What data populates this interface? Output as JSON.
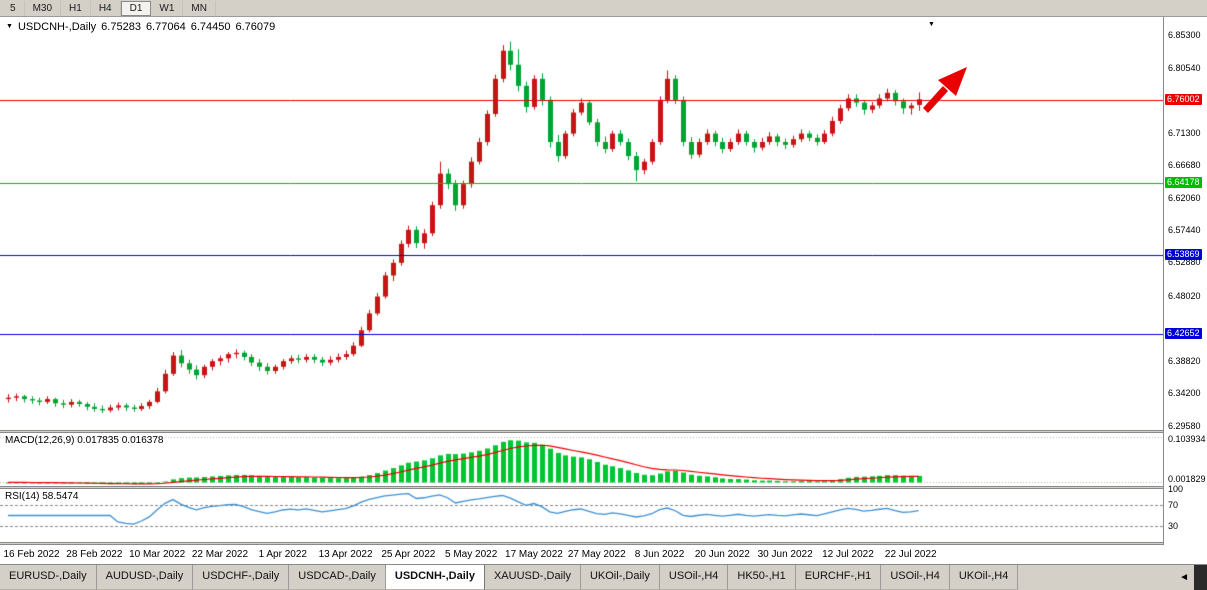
{
  "toolbar": {
    "timeframes": [
      {
        "label": "5",
        "active": false
      },
      {
        "label": "M30",
        "active": false
      },
      {
        "label": "H1",
        "active": false
      },
      {
        "label": "H4",
        "active": false
      },
      {
        "label": "D1",
        "active": true
      },
      {
        "label": "W1",
        "active": false
      },
      {
        "label": "MN",
        "active": false
      }
    ]
  },
  "chart_data": {
    "type": "candlestick",
    "symbol": "USDCNH-,Daily",
    "ohlc_readout": {
      "open": "6.75283",
      "high": "6.77064",
      "low": "6.74450",
      "close": "6.76079"
    },
    "y_axis": {
      "top": 6.878,
      "bottom": 6.29,
      "ticks": [
        "6.85300",
        "6.80540",
        "6.71300",
        "6.66680",
        "6.62060",
        "6.57440",
        "6.52880",
        "6.48020",
        "6.38820",
        "6.34200",
        "6.29580"
      ]
    },
    "hlines": [
      {
        "value": 6.76002,
        "label": "6.76002",
        "color": "#ee0000"
      },
      {
        "value": 6.64178,
        "label": "6.64178",
        "color": "#00bb00"
      },
      {
        "value": 6.53869,
        "label": "6.53869",
        "color": "#0000dd"
      },
      {
        "value": 6.42652,
        "label": "6.42652",
        "color": "#0000dd"
      }
    ],
    "colors": {
      "up": "#c81414",
      "down": "#00a432"
    },
    "annotations": [
      {
        "type": "arrow-up-right",
        "color": "#e80000"
      }
    ],
    "shift_marker": "▼",
    "dropdown_marker": "▼",
    "x_ticks": [
      {
        "index": 3,
        "label": "16 Feb 2022"
      },
      {
        "index": 11,
        "label": "28 Feb 2022"
      },
      {
        "index": 19,
        "label": "10 Mar 2022"
      },
      {
        "index": 27,
        "label": "22 Mar 2022"
      },
      {
        "index": 35,
        "label": "1 Apr 2022"
      },
      {
        "index": 43,
        "label": "13 Apr 2022"
      },
      {
        "index": 51,
        "label": "25 Apr 2022"
      },
      {
        "index": 59,
        "label": "5 May 2022"
      },
      {
        "index": 67,
        "label": "17 May 2022"
      },
      {
        "index": 75,
        "label": "27 May 2022"
      },
      {
        "index": 83,
        "label": "8 Jun 2022"
      },
      {
        "index": 91,
        "label": "20 Jun 2022"
      },
      {
        "index": 99,
        "label": "30 Jun 2022"
      },
      {
        "index": 107,
        "label": "12 Jul 2022"
      },
      {
        "index": 115,
        "label": "22 Jul 2022"
      }
    ],
    "candles": [
      [
        6.334,
        6.341,
        6.329,
        6.336
      ],
      [
        6.336,
        6.342,
        6.331,
        6.338
      ],
      [
        6.338,
        6.34,
        6.329,
        6.334
      ],
      [
        6.334,
        6.338,
        6.327,
        6.332
      ],
      [
        6.332,
        6.336,
        6.325,
        6.33
      ],
      [
        6.33,
        6.338,
        6.327,
        6.334
      ],
      [
        6.334,
        6.336,
        6.323,
        6.328
      ],
      [
        6.328,
        6.333,
        6.321,
        6.326
      ],
      [
        6.326,
        6.334,
        6.322,
        6.33
      ],
      [
        6.33,
        6.333,
        6.323,
        6.327
      ],
      [
        6.327,
        6.33,
        6.318,
        6.323
      ],
      [
        6.323,
        6.328,
        6.316,
        6.32
      ],
      [
        6.32,
        6.325,
        6.314,
        6.318
      ],
      [
        6.318,
        6.326,
        6.315,
        6.322
      ],
      [
        6.322,
        6.329,
        6.318,
        6.325
      ],
      [
        6.325,
        6.328,
        6.317,
        6.322
      ],
      [
        6.322,
        6.326,
        6.316,
        6.32
      ],
      [
        6.32,
        6.328,
        6.317,
        6.324
      ],
      [
        6.324,
        6.333,
        6.32,
        6.33
      ],
      [
        6.33,
        6.35,
        6.328,
        6.345
      ],
      [
        6.345,
        6.376,
        6.342,
        6.37
      ],
      [
        6.37,
        6.401,
        6.367,
        6.396
      ],
      [
        6.396,
        6.404,
        6.379,
        6.385
      ],
      [
        6.385,
        6.39,
        6.37,
        6.376
      ],
      [
        6.376,
        6.382,
        6.362,
        6.368
      ],
      [
        6.368,
        6.383,
        6.364,
        6.38
      ],
      [
        6.38,
        6.391,
        6.375,
        6.388
      ],
      [
        6.388,
        6.396,
        6.382,
        6.392
      ],
      [
        6.392,
        6.401,
        6.386,
        6.398
      ],
      [
        6.398,
        6.405,
        6.392,
        6.4
      ],
      [
        6.4,
        6.403,
        6.389,
        6.394
      ],
      [
        6.394,
        6.398,
        6.381,
        6.386
      ],
      [
        6.386,
        6.391,
        6.374,
        6.38
      ],
      [
        6.38,
        6.385,
        6.369,
        6.374
      ],
      [
        6.374,
        6.383,
        6.37,
        6.38
      ],
      [
        6.38,
        6.391,
        6.376,
        6.388
      ],
      [
        6.388,
        6.396,
        6.384,
        6.392
      ],
      [
        6.392,
        6.397,
        6.385,
        6.39
      ],
      [
        6.39,
        6.398,
        6.386,
        6.394
      ],
      [
        6.394,
        6.398,
        6.385,
        6.39
      ],
      [
        6.39,
        6.394,
        6.381,
        6.386
      ],
      [
        6.386,
        6.395,
        6.382,
        6.39
      ],
      [
        6.39,
        6.399,
        6.386,
        6.394
      ],
      [
        6.394,
        6.403,
        6.39,
        6.398
      ],
      [
        6.398,
        6.415,
        6.395,
        6.41
      ],
      [
        6.41,
        6.437,
        6.408,
        6.432
      ],
      [
        6.432,
        6.461,
        6.429,
        6.456
      ],
      [
        6.456,
        6.485,
        6.453,
        6.48
      ],
      [
        6.48,
        6.515,
        6.477,
        6.51
      ],
      [
        6.51,
        6.533,
        6.502,
        6.528
      ],
      [
        6.528,
        6.56,
        6.524,
        6.555
      ],
      [
        6.555,
        6.581,
        6.55,
        6.575
      ],
      [
        6.575,
        6.58,
        6.549,
        6.556
      ],
      [
        6.556,
        6.576,
        6.548,
        6.57
      ],
      [
        6.57,
        6.615,
        6.566,
        6.61
      ],
      [
        6.61,
        6.672,
        6.605,
        6.655
      ],
      [
        6.655,
        6.662,
        6.633,
        6.64
      ],
      [
        6.64,
        6.646,
        6.602,
        6.61
      ],
      [
        6.61,
        6.645,
        6.605,
        6.64
      ],
      [
        6.64,
        6.678,
        6.635,
        6.672
      ],
      [
        6.672,
        6.706,
        6.668,
        6.7
      ],
      [
        6.7,
        6.745,
        6.695,
        6.74
      ],
      [
        6.74,
        6.796,
        6.736,
        6.79
      ],
      [
        6.79,
        6.838,
        6.785,
        6.83
      ],
      [
        6.83,
        6.843,
        6.802,
        6.81
      ],
      [
        6.81,
        6.832,
        6.772,
        6.78
      ],
      [
        6.78,
        6.786,
        6.742,
        6.75
      ],
      [
        6.75,
        6.795,
        6.746,
        6.79
      ],
      [
        6.79,
        6.798,
        6.752,
        6.76
      ],
      [
        6.76,
        6.765,
        6.692,
        6.7
      ],
      [
        6.7,
        6.71,
        6.672,
        6.68
      ],
      [
        6.68,
        6.716,
        6.676,
        6.712
      ],
      [
        6.712,
        6.747,
        6.708,
        6.742
      ],
      [
        6.742,
        6.762,
        6.738,
        6.756
      ],
      [
        6.756,
        6.76,
        6.724,
        6.728
      ],
      [
        6.728,
        6.733,
        6.694,
        6.7
      ],
      [
        6.7,
        6.708,
        6.684,
        6.69
      ],
      [
        6.69,
        6.716,
        6.686,
        6.712
      ],
      [
        6.712,
        6.717,
        6.695,
        6.7
      ],
      [
        6.7,
        6.705,
        6.674,
        6.68
      ],
      [
        6.68,
        6.686,
        6.644,
        6.66
      ],
      [
        6.66,
        6.676,
        6.654,
        6.672
      ],
      [
        6.672,
        6.704,
        6.668,
        6.7
      ],
      [
        6.7,
        6.765,
        6.696,
        6.76
      ],
      [
        6.76,
        6.802,
        6.755,
        6.79
      ],
      [
        6.79,
        6.795,
        6.754,
        6.76
      ],
      [
        6.76,
        6.765,
        6.694,
        6.7
      ],
      [
        6.7,
        6.707,
        6.676,
        6.682
      ],
      [
        6.682,
        6.705,
        6.678,
        6.7
      ],
      [
        6.7,
        6.718,
        6.696,
        6.712
      ],
      [
        6.712,
        6.716,
        6.694,
        6.7
      ],
      [
        6.7,
        6.706,
        6.684,
        6.69
      ],
      [
        6.69,
        6.705,
        6.686,
        6.7
      ],
      [
        6.7,
        6.718,
        6.696,
        6.712
      ],
      [
        6.712,
        6.716,
        6.695,
        6.7
      ],
      [
        6.7,
        6.704,
        6.685,
        6.692
      ],
      [
        6.692,
        6.706,
        6.688,
        6.7
      ],
      [
        6.7,
        6.714,
        6.696,
        6.708
      ],
      [
        6.708,
        6.712,
        6.694,
        6.7
      ],
      [
        6.7,
        6.705,
        6.69,
        6.696
      ],
      [
        6.696,
        6.709,
        6.692,
        6.704
      ],
      [
        6.704,
        6.718,
        6.7,
        6.712
      ],
      [
        6.712,
        6.716,
        6.701,
        6.706
      ],
      [
        6.706,
        6.711,
        6.695,
        6.7
      ],
      [
        6.7,
        6.717,
        6.697,
        6.712
      ],
      [
        6.712,
        6.736,
        6.708,
        6.73
      ],
      [
        6.73,
        6.753,
        6.726,
        6.748
      ],
      [
        6.748,
        6.768,
        6.744,
        6.762
      ],
      [
        6.762,
        6.768,
        6.75,
        6.756
      ],
      [
        6.756,
        6.76,
        6.739,
        6.746
      ],
      [
        6.746,
        6.757,
        6.741,
        6.752
      ],
      [
        6.752,
        6.768,
        6.748,
        6.762
      ],
      [
        6.762,
        6.776,
        6.758,
        6.77
      ],
      [
        6.77,
        6.774,
        6.752,
        6.758
      ],
      [
        6.758,
        6.762,
        6.74,
        6.748
      ],
      [
        6.748,
        6.756,
        6.739,
        6.752
      ],
      [
        6.7528,
        6.7706,
        6.7445,
        6.7608
      ]
    ]
  },
  "macd": {
    "label": "MACD(12,26,9) 0.017835 0.016378",
    "fast": 12,
    "slow": 26,
    "signal": 9,
    "values_readout": [
      "0.017835",
      "0.016378"
    ],
    "axis_labels": [
      {
        "text": "0.103934",
        "value": 0.103934
      },
      {
        "text": "0.001829",
        "value": 0.001829
      }
    ],
    "histogram_color": "#00c632",
    "signal_color": "#ee0000"
  },
  "rsi": {
    "label": "RSI(14) 58.5474",
    "period": 14,
    "value_readout": "58.5474",
    "levels": [
      {
        "text": "100",
        "value": 100,
        "line": false
      },
      {
        "text": "70",
        "value": 70,
        "line": true
      },
      {
        "text": "30",
        "value": 30,
        "line": true
      }
    ],
    "line_color": "#3e8fd0"
  },
  "tabs": {
    "items": [
      "EURUSD-,Daily",
      "AUDUSD-,Daily",
      "USDCHF-,Daily",
      "USDCAD-,Daily",
      "USDCNH-,Daily",
      "XAUUSD-,Daily",
      "UKOil-,Daily",
      "USOil-,H4",
      "HK50-,H1",
      "EURCHF-,H1",
      "USOil-,H4",
      "UKOil-,H4"
    ],
    "active_index": 4,
    "scroll_left_icon": "◄"
  }
}
